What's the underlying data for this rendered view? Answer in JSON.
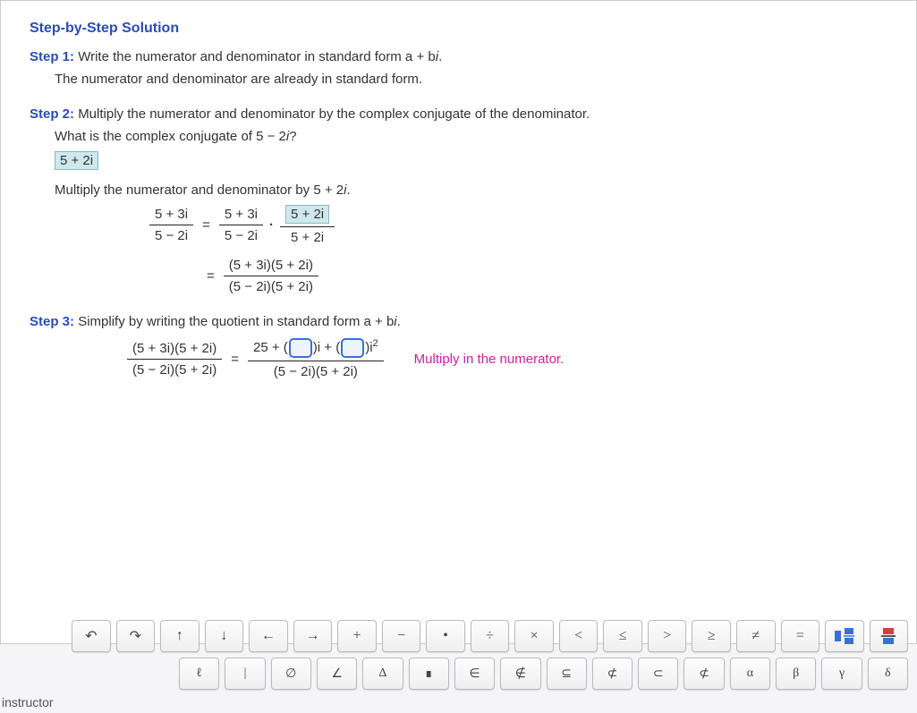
{
  "title": "Step-by-Step Solution",
  "step1": {
    "label": "Step 1:",
    "text": "Write the numerator and denominator in standard form a + b",
    "note": "The numerator and denominator are already in standard form."
  },
  "step2": {
    "label": "Step 2:",
    "text": "Multiply the numerator and denominator by the complex conjugate of the denominator.",
    "q": "What is the complex conjugate of 5 − 2",
    "ans": "5 + 2i",
    "mult": "Multiply the numerator and denominator by 5 + 2",
    "f1": {
      "num": "5 + 3i",
      "den": "5 − 2i"
    },
    "f2": {
      "num": "5 + 3i",
      "den": "5 − 2i"
    },
    "f3": {
      "num": "5 + 2i",
      "den": "5 + 2i"
    },
    "f4": {
      "num": "(5 + 3i)(5 + 2i)",
      "den": "(5 − 2i)(5 + 2i)"
    }
  },
  "step3": {
    "label": "Step 3:",
    "text": "Simplify by writing the quotient in standard form a + b",
    "lhs": {
      "num": "(5 + 3i)(5 + 2i)",
      "den": "(5 − 2i)(5 + 2i)"
    },
    "rhs_prefix": "25 + ",
    "rhs_i": "i + ",
    "rhs_i2": "i",
    "rhs_den": "(5 − 2i)(5 + 2i)",
    "hint": "Multiply in the numerator."
  },
  "keypad": {
    "row1": [
      "↶",
      "↷",
      "↑",
      "↓",
      "←",
      "→",
      "+",
      "−",
      "•",
      "÷",
      "×",
      "<",
      "≤",
      ">",
      "≥",
      "≠",
      "="
    ],
    "row2": [
      "ℓ",
      "|",
      "∅",
      "∠",
      "Δ",
      "∎",
      "∈",
      "∉",
      "⊆",
      "⊄",
      "⊂",
      "⊄",
      "α",
      "β",
      "γ",
      "δ"
    ],
    "mixed_icon": "▯▯"
  },
  "footer": "instructor",
  "colors": {
    "accent": "#2a4db0",
    "hint": "#c81fa6",
    "highlight_bg": "#cfe8ee",
    "highlight_border": "#88b8c0",
    "inputbox_border": "#3a6fd8",
    "page_bg": "#ffffff",
    "body_bg": "#f5f5f7"
  }
}
